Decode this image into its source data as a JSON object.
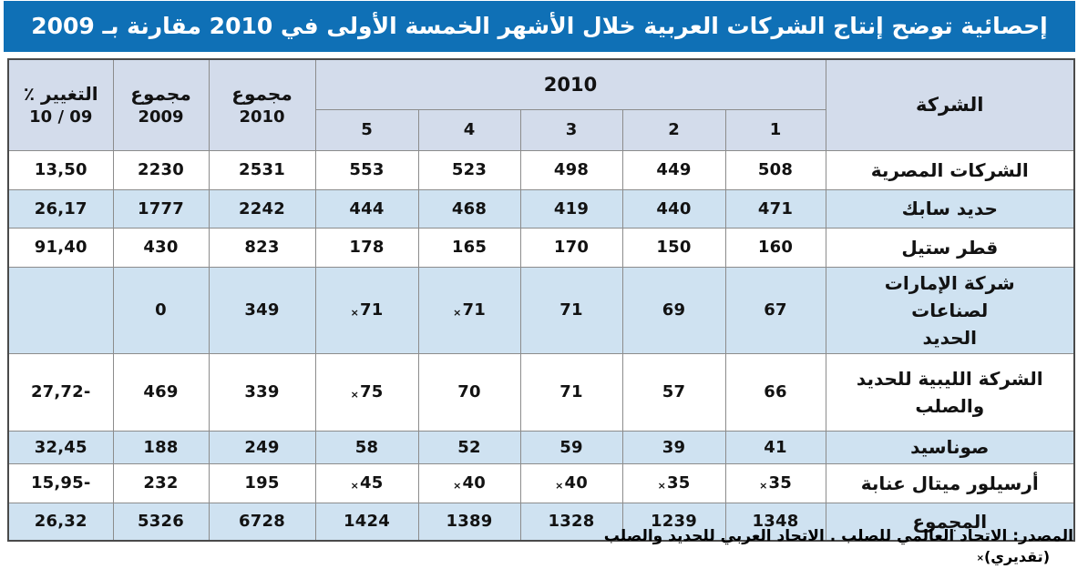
{
  "title": "إحصائية توضح إنتاج الشركات العربية خلال الأشهر الخمسة الأولى في 2010 مقارنة بـ 2009",
  "colors": {
    "title_bar": "#0f70b6",
    "header_bg": "#d3dceb",
    "row_alt": "#cfe2f1",
    "grid": "#8c8c8c",
    "outer_border": "#4a4a4a"
  },
  "table": {
    "company_header": "الشركة",
    "year_group_header": "2010",
    "month_headers": [
      "1",
      "2",
      "3",
      "4",
      "5"
    ],
    "total_2010": {
      "line1": "مجموع",
      "line2": "2010"
    },
    "total_2009": {
      "line1": "مجموع",
      "line2": "2009"
    },
    "change": {
      "line1": "التغيير ٪",
      "line2": "09 / 10"
    },
    "rows": [
      {
        "company": "الشركات المصرية",
        "values": [
          "508",
          "449",
          "498",
          "523",
          "553",
          "2531",
          "2230",
          "13,50"
        ]
      },
      {
        "company": "حديد سابك",
        "values": [
          "471",
          "440",
          "419",
          "468",
          "444",
          "2242",
          "1777",
          "26,17"
        ]
      },
      {
        "company": "قطر ستيل",
        "values": [
          "160",
          "150",
          "170",
          "165",
          "178",
          "823",
          "430",
          "91,40"
        ]
      },
      {
        "company": "شركة الإمارات لصناعات\nالحديد",
        "values": [
          "67",
          "69",
          "71",
          "×71",
          "×71",
          "349",
          "0",
          ""
        ]
      },
      {
        "company": "الشركة الليبية للحديد\nوالصلب",
        "values": [
          "66",
          "57",
          "71",
          "70",
          "×75",
          "339",
          "469",
          "27,72-"
        ]
      },
      {
        "company": "صوناسيد",
        "values": [
          "41",
          "39",
          "59",
          "52",
          "58",
          "249",
          "188",
          "32,45"
        ]
      },
      {
        "company": "أرسيلور ميتال عنابة",
        "values": [
          "×35",
          "×35",
          "×40",
          "×40",
          "×45",
          "195",
          "232",
          "15,95-"
        ]
      },
      {
        "company": "المجموع",
        "values": [
          "1348",
          "1239",
          "1328",
          "1389",
          "1424",
          "6728",
          "5326",
          "26,32"
        ]
      }
    ]
  },
  "footer": {
    "source": "المصدر: الاتحاد العالمي للصلب . الاتحاد العربي للحديد والصلب",
    "estimate_mark": "×",
    "estimate_text": "(تقديري)"
  }
}
